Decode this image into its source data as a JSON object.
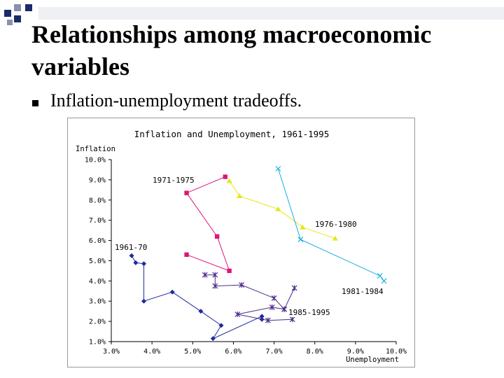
{
  "slide": {
    "title": "Relationships among macroeconomic variables",
    "bullet": "Inflation-unemployment tradeoffs."
  },
  "chart_data": {
    "type": "line",
    "title": "Inflation and Unemployment, 1961-1995",
    "xlabel": "Unemployment",
    "ylabel": "Inflation",
    "xlim": [
      3,
      10
    ],
    "ylim": [
      1,
      10
    ],
    "x_ticks": [
      "3.0%",
      "4.0%",
      "5.0%",
      "6.0%",
      "7.0%",
      "8.0%",
      "9.0%",
      "10.0%"
    ],
    "y_ticks": [
      "1.0%",
      "2.0%",
      "3.0%",
      "4.0%",
      "5.0%",
      "6.0%",
      "7.0%",
      "8.0%",
      "9.0%",
      "10.0%"
    ],
    "grid": false,
    "series": [
      {
        "name": "1961-70",
        "color": "#1f2a9e",
        "marker": "diamond",
        "points": [
          [
            3.5,
            5.25
          ],
          [
            3.6,
            4.9
          ],
          [
            3.8,
            4.85
          ],
          [
            3.8,
            3.0
          ],
          [
            4.5,
            3.45
          ],
          [
            5.2,
            2.5
          ],
          [
            5.7,
            1.8
          ],
          [
            5.5,
            1.15
          ],
          [
            6.7,
            2.25
          ],
          [
            6.7,
            2.1
          ]
        ]
      },
      {
        "name": "1971-1975",
        "color": "#e0147a",
        "marker": "square",
        "points": [
          [
            5.8,
            9.15
          ],
          [
            4.85,
            8.35
          ],
          [
            5.6,
            6.2
          ],
          [
            5.9,
            4.5
          ],
          [
            4.85,
            5.3
          ]
        ]
      },
      {
        "name": "1976-1980",
        "color": "#e6e617",
        "marker": "triangle",
        "points": [
          [
            5.9,
            8.95
          ],
          [
            6.15,
            8.2
          ],
          [
            7.1,
            7.55
          ],
          [
            7.7,
            6.65
          ],
          [
            8.5,
            6.1
          ]
        ]
      },
      {
        "name": "1981-1984",
        "color": "#15aee0",
        "marker": "cross",
        "points": [
          [
            7.1,
            9.55
          ],
          [
            7.65,
            6.05
          ],
          [
            9.6,
            4.25
          ],
          [
            9.7,
            4.0
          ]
        ]
      },
      {
        "name": "1985-1995",
        "color": "#4a2a8a",
        "marker": "star",
        "points": [
          [
            5.3,
            4.3
          ],
          [
            5.55,
            4.3
          ],
          [
            5.55,
            3.75
          ],
          [
            6.2,
            3.8
          ],
          [
            7.0,
            3.15
          ],
          [
            7.25,
            2.6
          ],
          [
            7.5,
            3.65
          ],
          [
            7.25,
            2.6
          ],
          [
            6.95,
            2.7
          ],
          [
            6.1,
            2.35
          ],
          [
            6.85,
            2.05
          ],
          [
            7.45,
            2.1
          ]
        ]
      }
    ],
    "colors": {
      "axis": "#000000",
      "text": "#000000",
      "frame": "#9a9a9a",
      "deco_dark": "#1b2a6b",
      "deco_light": "#8a90b0"
    }
  }
}
